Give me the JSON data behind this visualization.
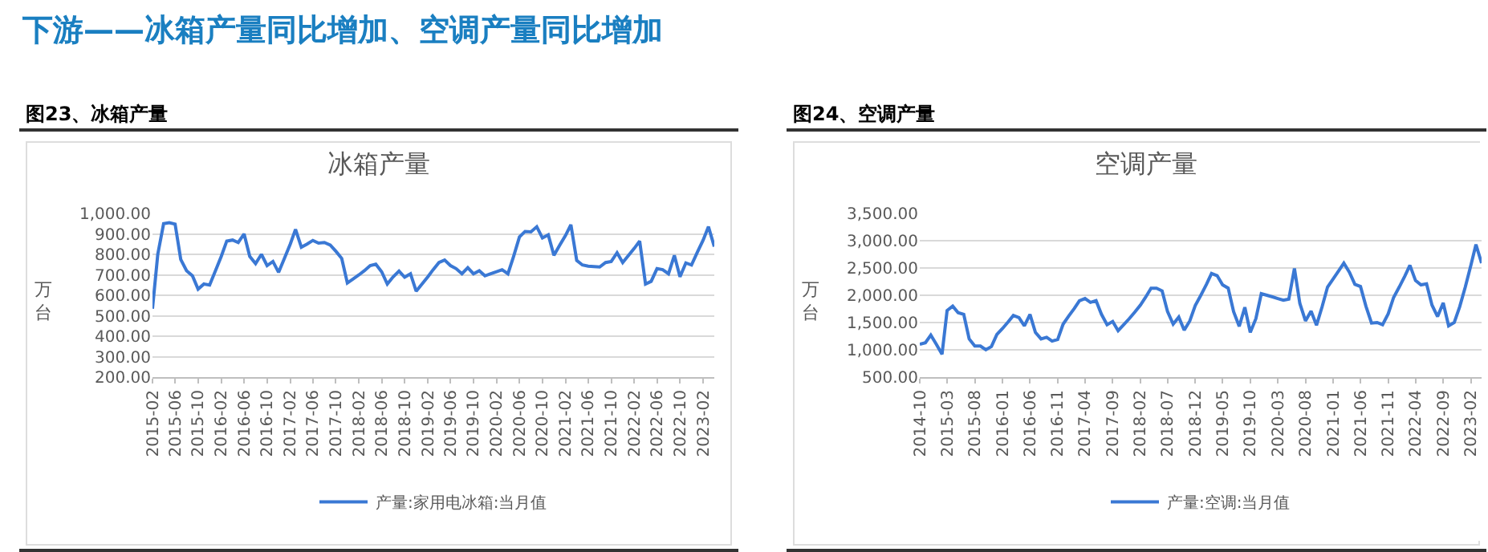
{
  "chart_data": [
    {
      "type": "line",
      "title": "冰箱产量",
      "ylabel": "万台",
      "legend": "bottom",
      "grid": "y",
      "marker": "none",
      "line_style": "solid",
      "annotations": [
        "下游——冰箱产量同比增加、空调产量同比增加",
        "图23、冰箱产量"
      ],
      "x": [
        "2015-02",
        "2015-03",
        "2015-04",
        "2015-05",
        "2015-06",
        "2015-07",
        "2015-08",
        "2015-09",
        "2015-10",
        "2015-11",
        "2015-12",
        "2016-01",
        "2016-02",
        "2016-03",
        "2016-04",
        "2016-05",
        "2016-06",
        "2016-07",
        "2016-08",
        "2016-09",
        "2016-10",
        "2016-11",
        "2016-12",
        "2017-01",
        "2017-02",
        "2017-03",
        "2017-04",
        "2017-05",
        "2017-06",
        "2017-07",
        "2017-08",
        "2017-09",
        "2017-10",
        "2017-11",
        "2017-12",
        "2018-01",
        "2018-02",
        "2018-03",
        "2018-04",
        "2018-05",
        "2018-06",
        "2018-07",
        "2018-08",
        "2018-09",
        "2018-10",
        "2018-11",
        "2018-12",
        "2019-01",
        "2019-02",
        "2019-03",
        "2019-04",
        "2019-05",
        "2019-06",
        "2019-07",
        "2019-08",
        "2019-09",
        "2019-10",
        "2019-11",
        "2019-12",
        "2020-01",
        "2020-02",
        "2020-03",
        "2020-04",
        "2020-05",
        "2020-06",
        "2020-07",
        "2020-08",
        "2020-09",
        "2020-10",
        "2020-11",
        "2020-12",
        "2021-01",
        "2021-02",
        "2021-03",
        "2021-04",
        "2021-05",
        "2021-06",
        "2021-07",
        "2021-08",
        "2021-09",
        "2021-10",
        "2021-11",
        "2021-12",
        "2022-01",
        "2022-02",
        "2022-03",
        "2022-04",
        "2022-05",
        "2022-06",
        "2022-07",
        "2022-08",
        "2022-09",
        "2022-10",
        "2022-11",
        "2022-12",
        "2023-01",
        "2023-02",
        "2023-03",
        "2023-04"
      ],
      "series": [
        {
          "name": "产量:家用电冰箱:当月值",
          "color": "#3a78d4",
          "values": [
            534,
            800,
            950,
            955,
            948,
            775,
            720,
            695,
            630,
            655,
            650,
            720,
            790,
            865,
            870,
            858,
            900,
            790,
            755,
            800,
            745,
            765,
            712,
            780,
            850,
            922,
            835,
            850,
            868,
            855,
            858,
            845,
            815,
            780,
            660,
            680,
            700,
            720,
            745,
            752,
            715,
            655,
            690,
            718,
            688,
            705,
            620,
            655,
            690,
            725,
            760,
            772,
            745,
            730,
            705,
            735,
            705,
            720,
            695,
            705,
            715,
            725,
            705,
            790,
            885,
            912,
            910,
            935,
            880,
            895,
            795,
            845,
            893,
            945,
            770,
            748,
            742,
            740,
            738,
            760,
            765,
            808,
            760,
            795,
            830,
            865,
            655,
            668,
            730,
            725,
            705,
            795,
            690,
            758,
            748,
            810,
            870,
            935,
            838
          ]
        }
      ],
      "xlim": [
        "2015-02",
        "2023-04"
      ],
      "xticks": [
        "2015-02",
        "2015-06",
        "2015-10",
        "2016-02",
        "2016-06",
        "2016-10",
        "2017-02",
        "2017-06",
        "2017-10",
        "2018-02",
        "2018-06",
        "2018-10",
        "2019-02",
        "2019-06",
        "2019-10",
        "2020-02",
        "2020-06",
        "2020-10",
        "2021-02",
        "2021-06",
        "2021-10",
        "2022-02",
        "2022-06",
        "2022-10",
        "2023-02"
      ],
      "ylim": [
        200,
        1000
      ],
      "yticks": [
        {
          "value": 200,
          "label": "200.00"
        },
        {
          "value": 300,
          "label": "300.00"
        },
        {
          "value": 400,
          "label": "400.00"
        },
        {
          "value": 500,
          "label": "500.00"
        },
        {
          "value": 600,
          "label": "600.00"
        },
        {
          "value": 700,
          "label": "700.00"
        },
        {
          "value": 800,
          "label": "800.00"
        },
        {
          "value": 900,
          "label": "900.00"
        },
        {
          "value": 1000,
          "label": "1,000.00"
        }
      ]
    },
    {
      "type": "line",
      "title": "空调产量",
      "ylabel": "万台",
      "legend": "bottom",
      "grid": "y",
      "marker": "none",
      "line_style": "solid",
      "annotations": [
        "图24、空调产量"
      ],
      "x": [
        "2014-10",
        "2014-11",
        "2014-12",
        "2015-01",
        "2015-02",
        "2015-03",
        "2015-04",
        "2015-05",
        "2015-06",
        "2015-07",
        "2015-08",
        "2015-09",
        "2015-10",
        "2015-11",
        "2015-12",
        "2016-01",
        "2016-02",
        "2016-03",
        "2016-04",
        "2016-05",
        "2016-06",
        "2016-07",
        "2016-08",
        "2016-09",
        "2016-10",
        "2016-11",
        "2016-12",
        "2017-01",
        "2017-02",
        "2017-03",
        "2017-04",
        "2017-05",
        "2017-06",
        "2017-07",
        "2017-08",
        "2017-09",
        "2017-10",
        "2017-11",
        "2017-12",
        "2018-01",
        "2018-02",
        "2018-03",
        "2018-04",
        "2018-05",
        "2018-06",
        "2018-07",
        "2018-08",
        "2018-09",
        "2018-10",
        "2018-11",
        "2018-12",
        "2019-01",
        "2019-02",
        "2019-03",
        "2019-04",
        "2019-05",
        "2019-06",
        "2019-07",
        "2019-08",
        "2019-09",
        "2019-10",
        "2019-11",
        "2019-12",
        "2020-01",
        "2020-02",
        "2020-03",
        "2020-04",
        "2020-05",
        "2020-06",
        "2020-07",
        "2020-08",
        "2020-09",
        "2020-10",
        "2020-11",
        "2020-12",
        "2021-01",
        "2021-02",
        "2021-03",
        "2021-04",
        "2021-05",
        "2021-06",
        "2021-07",
        "2021-08",
        "2021-09",
        "2021-10",
        "2021-11",
        "2021-12",
        "2022-01",
        "2022-02",
        "2022-03",
        "2022-04",
        "2022-05",
        "2022-06",
        "2022-07",
        "2022-08",
        "2022-09",
        "2022-10",
        "2022-11",
        "2022-12",
        "2023-01",
        "2023-02",
        "2023-03",
        "2023-04"
      ],
      "series": [
        {
          "name": "产量:空调:当月值",
          "color": "#3a78d4",
          "values": [
            1100,
            1130,
            1270,
            1100,
            920,
            1720,
            1800,
            1680,
            1650,
            1200,
            1070,
            1070,
            1000,
            1060,
            1280,
            1390,
            1510,
            1630,
            1590,
            1440,
            1650,
            1320,
            1200,
            1230,
            1160,
            1190,
            1470,
            1620,
            1760,
            1900,
            1940,
            1870,
            1900,
            1650,
            1460,
            1520,
            1350,
            1460,
            1570,
            1690,
            1820,
            1960,
            2130,
            2130,
            2080,
            1700,
            1470,
            1600,
            1360,
            1530,
            1810,
            2000,
            2200,
            2400,
            2360,
            2190,
            2130,
            1700,
            1430,
            1780,
            1320,
            1570,
            2030,
            2000,
            1970,
            1940,
            1910,
            1930,
            2490,
            1850,
            1530,
            1710,
            1450,
            1790,
            2150,
            2300,
            2450,
            2590,
            2420,
            2200,
            2160,
            1800,
            1490,
            1500,
            1460,
            1660,
            1960,
            2150,
            2350,
            2550,
            2270,
            2190,
            2210,
            1820,
            1610,
            1860,
            1440,
            1500,
            1790,
            2150,
            2550,
            2930,
            2590
          ]
        }
      ],
      "xlim": [
        "2014-10",
        "2023-04"
      ],
      "xticks": [
        "2014-10",
        "2015-03",
        "2015-08",
        "2016-01",
        "2016-06",
        "2016-11",
        "2017-04",
        "2017-09",
        "2018-02",
        "2018-07",
        "2018-12",
        "2019-05",
        "2019-10",
        "2020-03",
        "2020-08",
        "2021-01",
        "2021-06",
        "2021-11",
        "2022-04",
        "2022-09",
        "2023-02"
      ],
      "ylim": [
        500,
        3500
      ],
      "yticks": [
        {
          "value": 500,
          "label": "500.00"
        },
        {
          "value": 1000,
          "label": "1,000.00"
        },
        {
          "value": 1500,
          "label": "1,500.00"
        },
        {
          "value": 2000,
          "label": "2,000.00"
        },
        {
          "value": 2500,
          "label": "2,500.00"
        },
        {
          "value": 3000,
          "label": "3,000.00"
        },
        {
          "value": 3500,
          "label": "3,500.00"
        }
      ]
    }
  ]
}
